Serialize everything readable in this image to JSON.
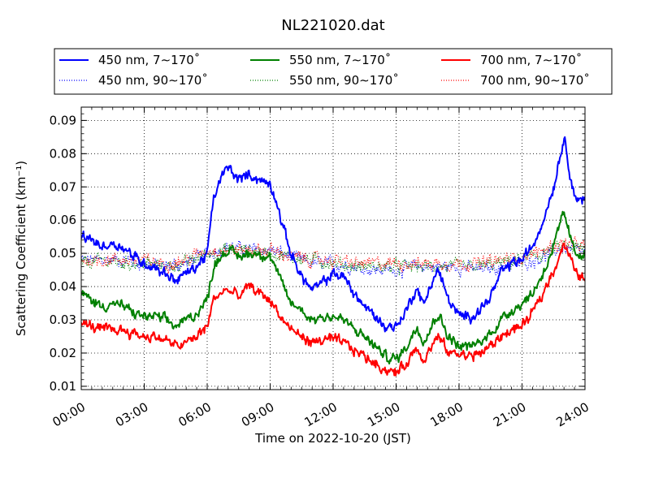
{
  "chart_data": {
    "type": "line",
    "title": "NL221020.dat",
    "xlabel": "Time on 2022-10-20 (JST)",
    "ylabel": "Scattering Coefficient (km⁻¹)",
    "xlim": [
      0,
      24
    ],
    "ylim": [
      0.009,
      0.094
    ],
    "x_ticks": [
      0,
      3,
      6,
      9,
      12,
      15,
      18,
      21,
      24
    ],
    "x_tick_labels": [
      "00:00",
      "03:00",
      "06:00",
      "09:00",
      "12:00",
      "15:00",
      "18:00",
      "21:00",
      "24:00"
    ],
    "y_ticks": [
      0.01,
      0.02,
      0.03,
      0.04,
      0.05,
      0.06,
      0.07,
      0.08,
      0.09
    ],
    "y_tick_labels": [
      "0.01",
      "0.02",
      "0.03",
      "0.04",
      "0.05",
      "0.06",
      "0.07",
      "0.08",
      "0.09"
    ],
    "grid": true,
    "legend_position": "top",
    "legend_columns": 3,
    "series": [
      {
        "name": "450 nm, 7∼170˚",
        "color": "#0000ff",
        "style": "solid",
        "x": [
          0,
          0.5,
          1,
          1.5,
          2,
          2.5,
          3,
          3.5,
          4,
          4.5,
          5,
          5.5,
          6,
          6.3,
          6.6,
          7,
          7.5,
          8,
          8.5,
          9,
          9.3,
          9.6,
          10,
          10.5,
          11,
          11.5,
          12,
          12.5,
          13,
          13.5,
          14,
          14.5,
          15,
          15.5,
          16,
          16.3,
          16.6,
          17,
          17.5,
          18,
          18.5,
          19,
          19.5,
          20,
          20.5,
          21,
          21.5,
          22,
          22.5,
          23,
          23.5,
          24
        ],
        "y": [
          0.055,
          0.054,
          0.052,
          0.053,
          0.052,
          0.049,
          0.047,
          0.046,
          0.044,
          0.042,
          0.044,
          0.046,
          0.05,
          0.066,
          0.072,
          0.076,
          0.072,
          0.074,
          0.072,
          0.071,
          0.066,
          0.058,
          0.05,
          0.043,
          0.039,
          0.041,
          0.044,
          0.043,
          0.038,
          0.034,
          0.031,
          0.028,
          0.028,
          0.033,
          0.04,
          0.034,
          0.04,
          0.045,
          0.036,
          0.031,
          0.031,
          0.033,
          0.037,
          0.044,
          0.047,
          0.048,
          0.052,
          0.06,
          0.07,
          0.085,
          0.067,
          0.066
        ]
      },
      {
        "name": "450 nm, 90∼170˚",
        "color": "#0000ff",
        "style": "dotted",
        "x": [
          0,
          1,
          2,
          3,
          4,
          5,
          6,
          7,
          8,
          9,
          10,
          11,
          12,
          13,
          14,
          15,
          16,
          17,
          18,
          19,
          20,
          21,
          22,
          23,
          24
        ],
        "y": [
          0.048,
          0.048,
          0.048,
          0.047,
          0.046,
          0.047,
          0.05,
          0.052,
          0.051,
          0.051,
          0.049,
          0.047,
          0.047,
          0.046,
          0.045,
          0.045,
          0.046,
          0.046,
          0.046,
          0.045,
          0.046,
          0.047,
          0.049,
          0.052,
          0.05
        ]
      },
      {
        "name": "550 nm, 7∼170˚",
        "color": "#008000",
        "style": "solid",
        "x": [
          0,
          0.5,
          1,
          1.5,
          2,
          2.5,
          3,
          3.5,
          4,
          4.5,
          5,
          5.5,
          6,
          6.3,
          6.6,
          7,
          7.5,
          8,
          8.5,
          9,
          9.3,
          9.6,
          10,
          10.5,
          11,
          11.5,
          12,
          12.5,
          13,
          13.5,
          14,
          14.5,
          15,
          15.5,
          16,
          16.3,
          16.6,
          17,
          17.5,
          18,
          18.5,
          19,
          19.5,
          20,
          20.5,
          21,
          21.5,
          22,
          22.5,
          23,
          23.5,
          24
        ],
        "y": [
          0.038,
          0.036,
          0.034,
          0.035,
          0.034,
          0.032,
          0.031,
          0.031,
          0.03,
          0.028,
          0.03,
          0.032,
          0.036,
          0.046,
          0.049,
          0.051,
          0.049,
          0.05,
          0.05,
          0.049,
          0.045,
          0.04,
          0.035,
          0.033,
          0.03,
          0.031,
          0.031,
          0.03,
          0.027,
          0.025,
          0.022,
          0.019,
          0.018,
          0.022,
          0.028,
          0.024,
          0.027,
          0.032,
          0.025,
          0.022,
          0.022,
          0.023,
          0.026,
          0.03,
          0.033,
          0.035,
          0.038,
          0.044,
          0.052,
          0.062,
          0.05,
          0.05
        ]
      },
      {
        "name": "550 nm, 90∼170˚",
        "color": "#008000",
        "style": "dotted",
        "x": [
          0,
          1,
          2,
          3,
          4,
          5,
          6,
          7,
          8,
          9,
          10,
          11,
          12,
          13,
          14,
          15,
          16,
          17,
          18,
          19,
          20,
          21,
          22,
          23,
          24
        ],
        "y": [
          0.047,
          0.048,
          0.047,
          0.047,
          0.046,
          0.047,
          0.05,
          0.051,
          0.051,
          0.05,
          0.049,
          0.048,
          0.047,
          0.046,
          0.046,
          0.046,
          0.046,
          0.046,
          0.046,
          0.046,
          0.047,
          0.048,
          0.05,
          0.052,
          0.051
        ]
      },
      {
        "name": "700 nm, 7∼170˚",
        "color": "#ff0000",
        "style": "solid",
        "x": [
          0,
          0.5,
          1,
          1.5,
          2,
          2.5,
          3,
          3.5,
          4,
          4.5,
          5,
          5.5,
          6,
          6.3,
          6.6,
          7,
          7.5,
          8,
          8.5,
          9,
          9.3,
          9.6,
          10,
          10.5,
          11,
          11.5,
          12,
          12.5,
          13,
          13.5,
          14,
          14.5,
          15,
          15.5,
          16,
          16.3,
          16.6,
          17,
          17.5,
          18,
          18.5,
          19,
          19.5,
          20,
          20.5,
          21,
          21.5,
          22,
          22.5,
          23,
          23.5,
          24
        ],
        "y": [
          0.029,
          0.028,
          0.027,
          0.027,
          0.027,
          0.026,
          0.025,
          0.025,
          0.024,
          0.022,
          0.023,
          0.025,
          0.028,
          0.036,
          0.038,
          0.039,
          0.037,
          0.04,
          0.038,
          0.036,
          0.033,
          0.03,
          0.027,
          0.025,
          0.023,
          0.024,
          0.024,
          0.023,
          0.021,
          0.019,
          0.017,
          0.015,
          0.014,
          0.017,
          0.022,
          0.018,
          0.021,
          0.025,
          0.02,
          0.02,
          0.019,
          0.02,
          0.022,
          0.025,
          0.027,
          0.028,
          0.032,
          0.038,
          0.045,
          0.053,
          0.045,
          0.042
        ]
      },
      {
        "name": "700 nm, 90∼170˚",
        "color": "#ff0000",
        "style": "dotted",
        "x": [
          0,
          1,
          2,
          3,
          4,
          5,
          6,
          7,
          8,
          9,
          10,
          11,
          12,
          13,
          14,
          15,
          16,
          17,
          18,
          19,
          20,
          21,
          22,
          23,
          24
        ],
        "y": [
          0.048,
          0.048,
          0.048,
          0.048,
          0.047,
          0.048,
          0.051,
          0.051,
          0.051,
          0.051,
          0.049,
          0.048,
          0.048,
          0.047,
          0.047,
          0.047,
          0.047,
          0.047,
          0.047,
          0.047,
          0.048,
          0.049,
          0.051,
          0.053,
          0.052
        ]
      }
    ]
  }
}
